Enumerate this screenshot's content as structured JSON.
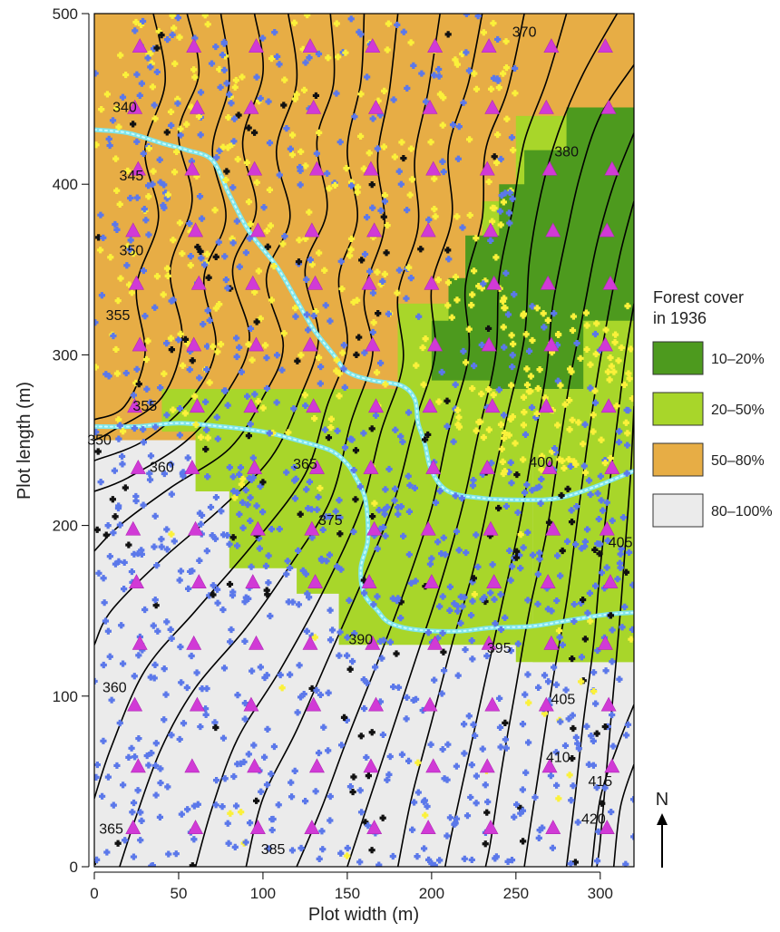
{
  "map": {
    "x_axis_label": "Plot width (m)",
    "y_axis_label": "Plot length (m)",
    "x_range": [
      0,
      320
    ],
    "y_range": [
      0,
      500
    ],
    "x_ticks": [
      "0",
      "50",
      "100",
      "150",
      "200",
      "250",
      "300"
    ],
    "y_ticks": [
      "0",
      "100",
      "200",
      "300",
      "400",
      "500"
    ],
    "north_arrow_label": "N",
    "legend": {
      "title_line1": "Forest cover",
      "title_line2": "in 1936",
      "items": [
        {
          "label": "10–20%",
          "color": "#4d9a1e"
        },
        {
          "label": "20–50%",
          "color": "#a8d62a"
        },
        {
          "label": "50–80%",
          "color": "#e7ad45"
        },
        {
          "label": "80–100%",
          "color": "#ebebeb"
        }
      ]
    },
    "contour_labels": [
      {
        "text": "340",
        "x": 18,
        "y": 445
      },
      {
        "text": "345",
        "x": 22,
        "y": 405
      },
      {
        "text": "350",
        "x": 22,
        "y": 361
      },
      {
        "text": "355",
        "x": 14,
        "y": 323
      },
      {
        "text": "355",
        "x": 30,
        "y": 270
      },
      {
        "text": "350",
        "x": 3,
        "y": 250
      },
      {
        "text": "360",
        "x": 40,
        "y": 234
      },
      {
        "text": "365",
        "x": 125,
        "y": 236
      },
      {
        "text": "375",
        "x": 140,
        "y": 203
      },
      {
        "text": "390",
        "x": 158,
        "y": 133
      },
      {
        "text": "395",
        "x": 240,
        "y": 128
      },
      {
        "text": "370",
        "x": 255,
        "y": 489
      },
      {
        "text": "380",
        "x": 280,
        "y": 419
      },
      {
        "text": "400",
        "x": 265,
        "y": 237
      },
      {
        "text": "405",
        "x": 312,
        "y": 190
      },
      {
        "text": "405",
        "x": 278,
        "y": 98
      },
      {
        "text": "410",
        "x": 275,
        "y": 64
      },
      {
        "text": "415",
        "x": 300,
        "y": 50
      },
      {
        "text": "420",
        "x": 296,
        "y": 28
      },
      {
        "text": "360",
        "x": 12,
        "y": 105
      },
      {
        "text": "365",
        "x": 10,
        "y": 22
      },
      {
        "text": "385",
        "x": 106,
        "y": 10
      }
    ]
  }
}
